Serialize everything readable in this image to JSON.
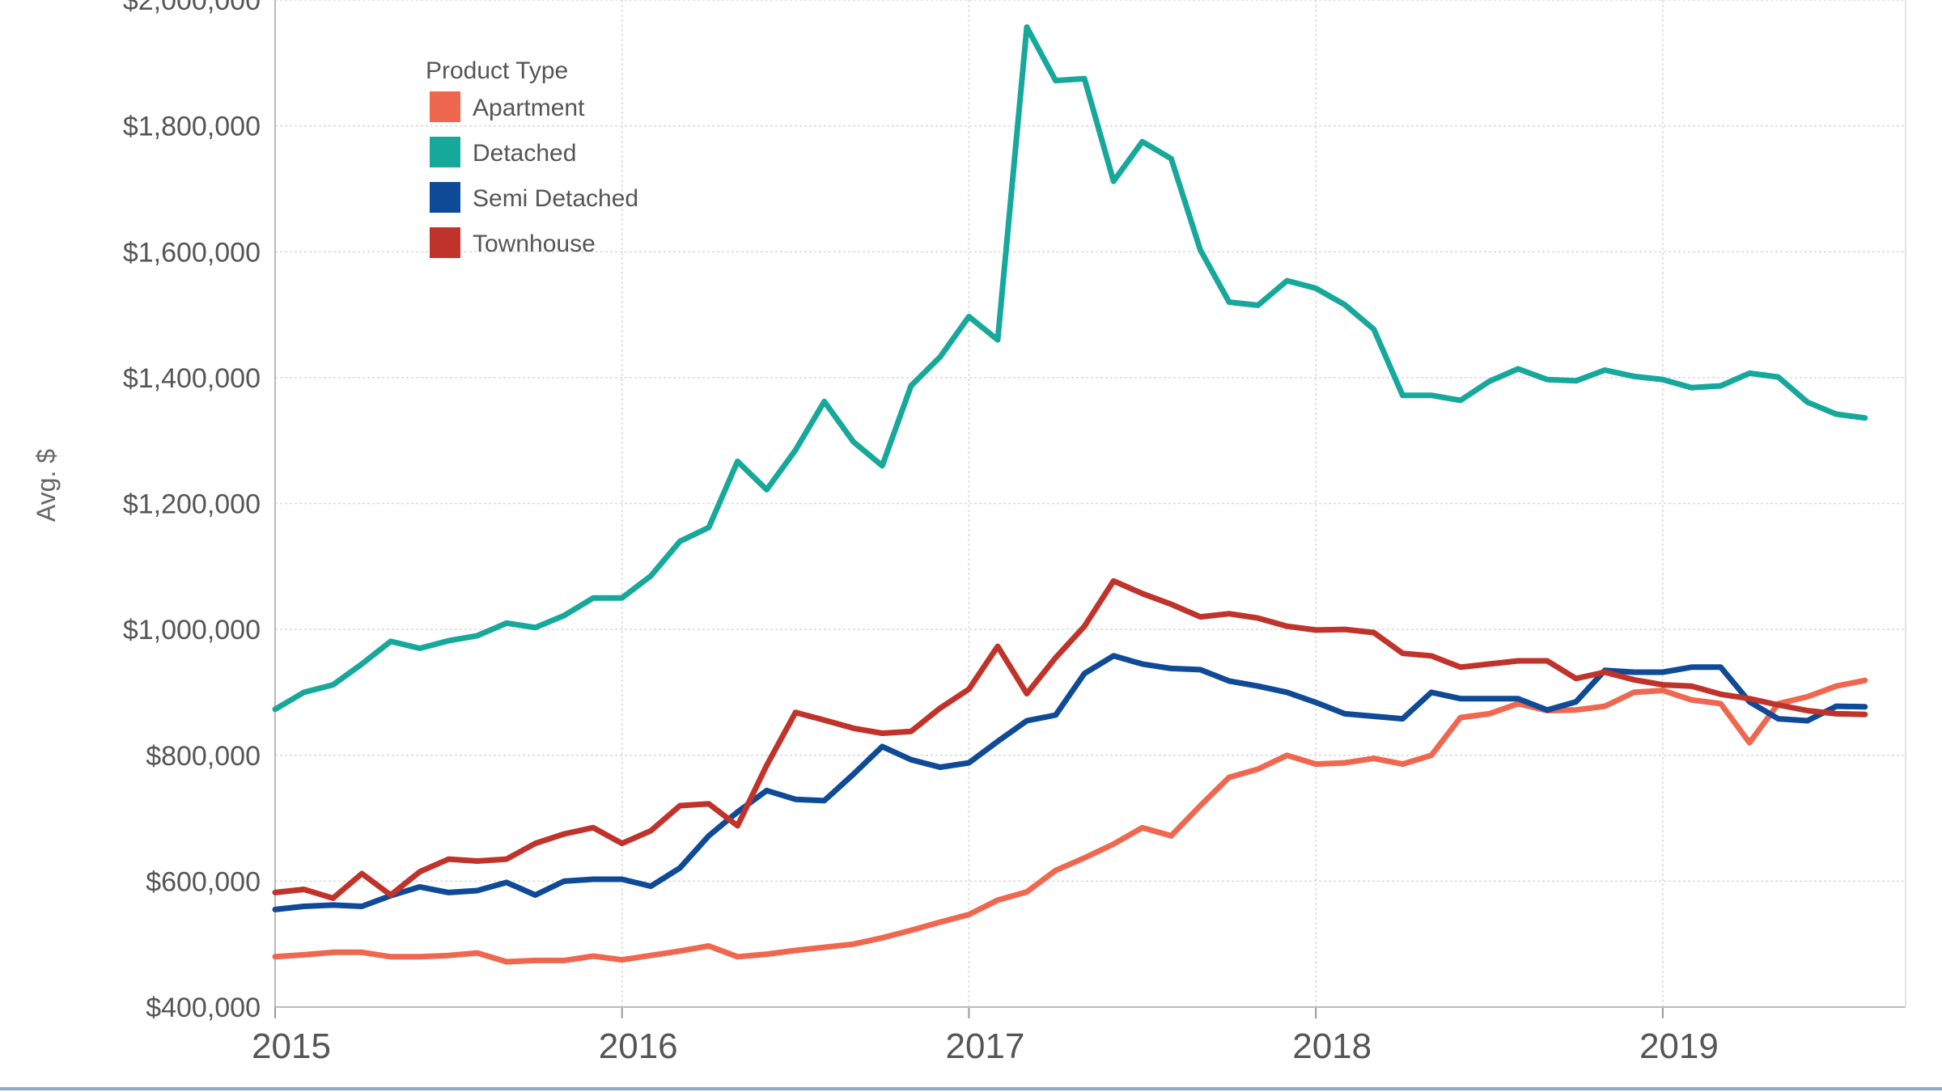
{
  "chart_data": {
    "type": "line",
    "title": "",
    "xlabel": "",
    "ylabel": "Avg. $",
    "ylim": [
      400000,
      2000000
    ],
    "xlim": [
      2015.0,
      2019.7
    ],
    "x_ticks": [
      2015,
      2016,
      2017,
      2018,
      2019
    ],
    "x_tick_labels": [
      "2015",
      "2016",
      "2017",
      "2018",
      "2019"
    ],
    "y_ticks": [
      400000,
      600000,
      800000,
      1000000,
      1200000,
      1400000,
      1600000,
      1800000,
      2000000
    ],
    "y_tick_labels": [
      "$400,000",
      "$600,000",
      "$800,000",
      "$1,000,000",
      "$1,200,000",
      "$1,400,000",
      "$1,600,000",
      "$1,800,000",
      "$2,000,000"
    ],
    "grid": true,
    "legend": {
      "title": "Product Type",
      "position": "top-left"
    },
    "x": [
      2015.0,
      2015.083,
      2015.167,
      2015.25,
      2015.333,
      2015.417,
      2015.5,
      2015.583,
      2015.667,
      2015.75,
      2015.833,
      2015.917,
      2016.0,
      2016.083,
      2016.167,
      2016.25,
      2016.333,
      2016.417,
      2016.5,
      2016.583,
      2016.667,
      2016.75,
      2016.833,
      2016.917,
      2017.0,
      2017.083,
      2017.167,
      2017.25,
      2017.333,
      2017.417,
      2017.5,
      2017.583,
      2017.667,
      2017.75,
      2017.833,
      2017.917,
      2018.0,
      2018.083,
      2018.167,
      2018.25,
      2018.333,
      2018.417,
      2018.5,
      2018.583,
      2018.667,
      2018.75,
      2018.833,
      2018.917,
      2019.0,
      2019.083,
      2019.167,
      2019.25,
      2019.333,
      2019.417,
      2019.5,
      2019.583
    ],
    "series": [
      {
        "name": "Apartment",
        "color": "#f0674f",
        "values": [
          480000,
          483000,
          487000,
          487000,
          480000,
          480000,
          482000,
          486000,
          472000,
          474000,
          474000,
          481000,
          475000,
          482000,
          489000,
          497000,
          480000,
          484000,
          490000,
          495000,
          500000,
          510000,
          522000,
          535000,
          547000,
          570000,
          583000,
          617000,
          637000,
          659000,
          685000,
          672000,
          720000,
          765000,
          778000,
          800000,
          786000,
          788000,
          795000,
          786000,
          800000,
          860000,
          866000,
          882000,
          871000,
          872000,
          878000,
          900000,
          903000,
          888000,
          882000,
          820000,
          882000,
          893000,
          910000,
          919000
        ]
      },
      {
        "name": "Detached",
        "color": "#17a89c",
        "values": [
          873000,
          900000,
          912000,
          945000,
          981000,
          970000,
          982000,
          990000,
          1010000,
          1003000,
          1022000,
          1050000,
          1050000,
          1085000,
          1140000,
          1162000,
          1267000,
          1222000,
          1285000,
          1362000,
          1298000,
          1260000,
          1387000,
          1433000,
          1497000,
          1460000,
          1957000,
          1872000,
          1875000,
          1712000,
          1775000,
          1748000,
          1603000,
          1520000,
          1515000,
          1554000,
          1542000,
          1516000,
          1477000,
          1372000,
          1372000,
          1364000,
          1394000,
          1414000,
          1397000,
          1395000,
          1412000,
          1402000,
          1397000,
          1384000,
          1387000,
          1407000,
          1401000,
          1361000,
          1342000,
          1336000
        ]
      },
      {
        "name": "Semi Detached",
        "color": "#0f4a96",
        "values": [
          555000,
          560000,
          562000,
          560000,
          577000,
          591000,
          582000,
          585000,
          598000,
          578000,
          600000,
          603000,
          603000,
          592000,
          621000,
          672000,
          710000,
          744000,
          730000,
          728000,
          770000,
          814000,
          793000,
          781000,
          788000,
          822000,
          855000,
          864000,
          930000,
          958000,
          945000,
          938000,
          936000,
          918000,
          910000,
          900000,
          884000,
          866000,
          862000,
          858000,
          900000,
          890000,
          890000,
          890000,
          872000,
          885000,
          935000,
          932000,
          932000,
          940000,
          940000,
          885000,
          858000,
          855000,
          878000,
          877000
        ]
      },
      {
        "name": "Townhouse",
        "color": "#c0332b",
        "values": [
          582000,
          587000,
          573000,
          612000,
          578000,
          615000,
          635000,
          632000,
          635000,
          660000,
          675000,
          685000,
          660000,
          680000,
          720000,
          723000,
          688000,
          784000,
          868000,
          856000,
          843000,
          835000,
          838000,
          875000,
          905000,
          973000,
          898000,
          955000,
          1005000,
          1077000,
          1057000,
          1040000,
          1020000,
          1025000,
          1018000,
          1005000,
          999000,
          1000000,
          995000,
          962000,
          958000,
          940000,
          945000,
          950000,
          950000,
          922000,
          932000,
          920000,
          912000,
          910000,
          897000,
          890000,
          880000,
          871000,
          866000,
          865000
        ]
      }
    ]
  }
}
